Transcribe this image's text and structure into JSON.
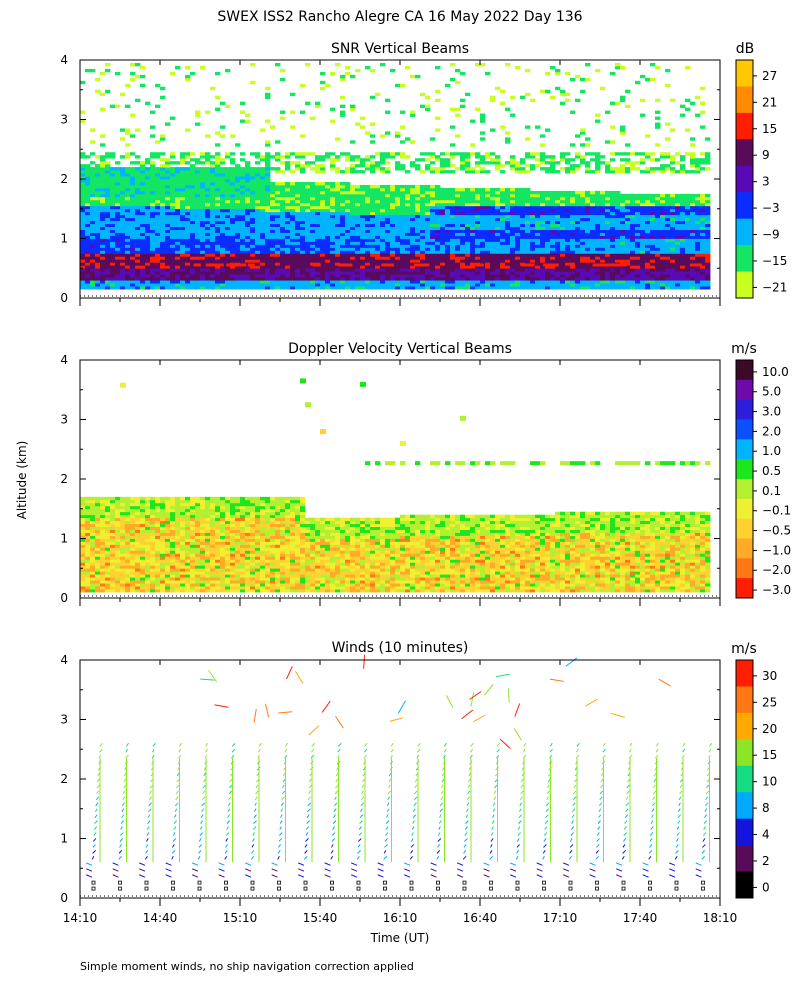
{
  "page_title": "SWEX ISS2 Rancho Alegre CA  16 May 2022 Day 136",
  "ylabel": "Altitude (km)",
  "xlabel": "Time (UT)",
  "footnote": "Simple moment winds, no ship navigation correction applied",
  "chart_data": [
    {
      "type": "heatmap",
      "title": "SNR Vertical Beams",
      "colorbar_unit": "dB",
      "colorbar_labels": [
        "27",
        "21",
        "15",
        "9",
        "3",
        "−3",
        "−9",
        "−15",
        "−21"
      ],
      "colorbar_colors": [
        "#ffc800",
        "#ff8c00",
        "#ff1e00",
        "#5a0a5a",
        "#5a0ab4",
        "#0a2dff",
        "#00b4ff",
        "#14e664",
        "#c8ff1e"
      ],
      "y_ticks": [
        "0",
        "1",
        "2",
        "3",
        "4"
      ],
      "ylim": [
        0,
        4
      ],
      "xlim": [
        "14:10",
        "18:10"
      ],
      "layers_db": [
        {
          "alt_km": [
            0.15,
            0.3
          ],
          "snr_db": -9
        },
        {
          "alt_km": [
            0.3,
            0.5
          ],
          "snr_db": 6
        },
        {
          "alt_km": [
            0.5,
            0.75
          ],
          "snr_db": 11
        },
        {
          "alt_km": [
            0.75,
            1.05
          ],
          "snr_db": -3
        },
        {
          "alt_km": [
            1.05,
            1.6
          ],
          "snr_db": -8
        },
        {
          "alt_km": [
            1.6,
            2.1
          ],
          "snr_db": -18
        },
        {
          "alt_km": [
            2.1,
            2.4
          ],
          "snr_db": -16
        }
      ]
    },
    {
      "type": "heatmap",
      "title": "Doppler Velocity Vertical Beams",
      "colorbar_unit": "m/s",
      "colorbar_labels": [
        "10.0",
        "5.0",
        "3.0",
        "2.0",
        "1.0",
        "0.5",
        "0.1",
        "−0.1",
        "−0.5",
        "−1.0",
        "−2.0",
        "−3.0"
      ],
      "colorbar_colors": [
        "#3c0a28",
        "#6e0aaa",
        "#2d1edc",
        "#0a50ff",
        "#00b4ff",
        "#1ee61e",
        "#b4f032",
        "#f0f032",
        "#ffd232",
        "#ffaa28",
        "#ff7814",
        "#ff1e00"
      ],
      "y_ticks": [
        "0",
        "1",
        "2",
        "3",
        "4"
      ],
      "ylim": [
        0,
        4
      ],
      "xlim": [
        "14:10",
        "18:10"
      ],
      "layers_ms": [
        {
          "alt_km": [
            0.1,
            1.2
          ],
          "w_ms": -0.4
        },
        {
          "alt_km": [
            1.2,
            1.7
          ],
          "w_ms": 0.0
        },
        {
          "alt_km": [
            2.2,
            2.3
          ],
          "w_ms": 0.3
        }
      ]
    },
    {
      "type": "scatter",
      "title": "Winds (10 minutes)",
      "colorbar_unit": "m/s",
      "colorbar_labels": [
        "30",
        "25",
        "20",
        "15",
        "10",
        "8",
        "4",
        "2",
        "0"
      ],
      "colorbar_colors": [
        "#ff1e00",
        "#ff7814",
        "#ffaa00",
        "#8ce628",
        "#14dc82",
        "#00aaff",
        "#1414dc",
        "#5a0a5a",
        "#000000"
      ],
      "y_ticks": [
        "0",
        "1",
        "2",
        "3",
        "4"
      ],
      "x_ticks": [
        "14:10",
        "14:40",
        "15:10",
        "15:40",
        "16:10",
        "16:40",
        "17:10",
        "17:40",
        "18:10"
      ],
      "ylim": [
        0,
        4
      ],
      "xlim": [
        "14:10",
        "18:10"
      ],
      "profiles": 24,
      "typical_speed_ms": {
        "below_1km": 4,
        "1_to_2_5km": 13,
        "above_2_5km": 18
      }
    }
  ]
}
